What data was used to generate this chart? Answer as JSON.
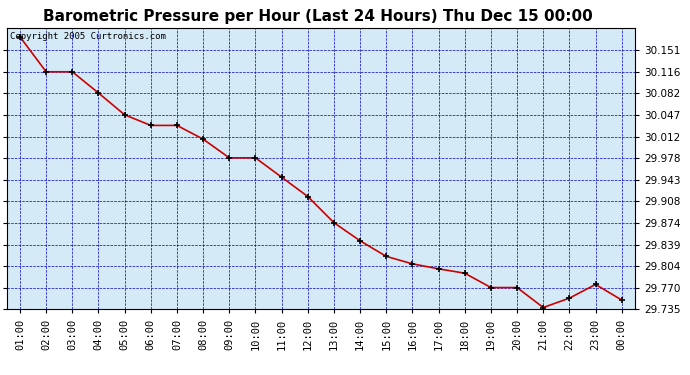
{
  "title": "Barometric Pressure per Hour (Last 24 Hours) Thu Dec 15 00:00",
  "copyright": "Copyright 2005 Curtronics.com",
  "x_labels": [
    "01:00",
    "02:00",
    "03:00",
    "04:00",
    "05:00",
    "06:00",
    "07:00",
    "08:00",
    "09:00",
    "10:00",
    "11:00",
    "12:00",
    "13:00",
    "14:00",
    "15:00",
    "16:00",
    "17:00",
    "18:00",
    "19:00",
    "20:00",
    "21:00",
    "22:00",
    "23:00",
    "00:00"
  ],
  "x_values": [
    1,
    2,
    3,
    4,
    5,
    6,
    7,
    8,
    9,
    10,
    11,
    12,
    13,
    14,
    15,
    16,
    17,
    18,
    19,
    20,
    21,
    22,
    23,
    24
  ],
  "y_values": [
    30.172,
    30.116,
    30.116,
    30.082,
    30.047,
    30.03,
    30.03,
    30.008,
    29.978,
    29.978,
    29.947,
    29.916,
    29.874,
    29.845,
    29.82,
    29.808,
    29.8,
    29.793,
    29.77,
    29.77,
    29.738,
    29.753,
    29.775,
    29.75
  ],
  "ylim_min": 29.735,
  "ylim_max": 30.186,
  "yticks": [
    30.151,
    30.116,
    30.082,
    30.047,
    30.012,
    29.978,
    29.943,
    29.908,
    29.874,
    29.839,
    29.804,
    29.77,
    29.735
  ],
  "line_color": "#cc0000",
  "marker_color": "#000000",
  "plot_area_color": "#d5eaf7",
  "grid_color": "#0000bb",
  "title_fontsize": 11,
  "tick_fontsize": 7.5,
  "copyright_fontsize": 6.5
}
